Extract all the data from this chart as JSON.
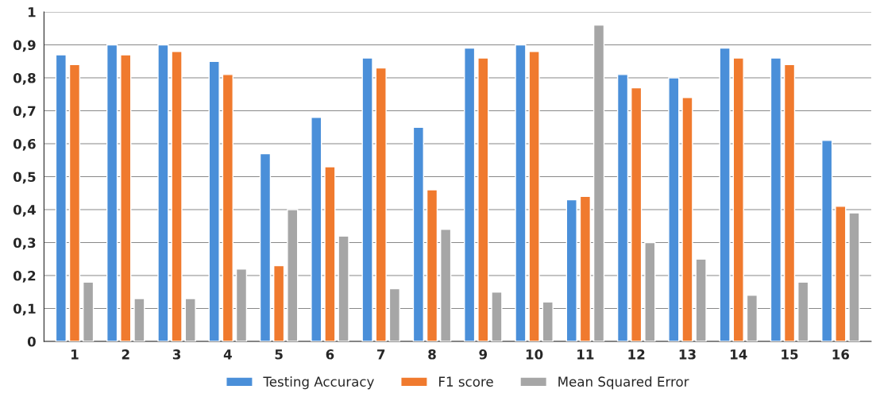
{
  "chart_data": {
    "type": "bar",
    "categories": [
      "1",
      "2",
      "3",
      "4",
      "5",
      "6",
      "7",
      "8",
      "9",
      "10",
      "11",
      "12",
      "13",
      "14",
      "15",
      "16"
    ],
    "series": [
      {
        "name": "Testing Accuracy",
        "color": "#4a8fd9",
        "values": [
          0.87,
          0.9,
          0.9,
          0.85,
          0.57,
          0.68,
          0.86,
          0.65,
          0.89,
          0.9,
          0.43,
          0.81,
          0.8,
          0.89,
          0.86,
          0.61
        ]
      },
      {
        "name": "F1 score",
        "color": "#f07a2e",
        "values": [
          0.84,
          0.87,
          0.88,
          0.81,
          0.23,
          0.53,
          0.83,
          0.46,
          0.86,
          0.88,
          0.44,
          0.77,
          0.74,
          0.86,
          0.84,
          0.41
        ]
      },
      {
        "name": "Mean Squared Error",
        "color": "#a6a6a6",
        "values": [
          0.18,
          0.13,
          0.13,
          0.22,
          0.4,
          0.32,
          0.16,
          0.34,
          0.15,
          0.12,
          0.96,
          0.3,
          0.25,
          0.14,
          0.18,
          0.39
        ]
      }
    ],
    "ylim": [
      0,
      1
    ],
    "yticks": [
      0,
      {
        "value": 0.1,
        "label": "0,1"
      },
      {
        "value": 0.2,
        "label": "0,2"
      },
      {
        "value": 0.3,
        "label": "0,3"
      },
      {
        "value": 0.4,
        "label": "0,4"
      },
      {
        "value": 0.5,
        "label": "0,5"
      },
      {
        "value": 0.6,
        "label": "0,6"
      },
      {
        "value": 0.7,
        "label": "0,7"
      },
      {
        "value": 0.8,
        "label": "0,8"
      },
      {
        "value": 0.9,
        "label": "0,9"
      },
      1
    ],
    "grid": "y",
    "legend": "bottom"
  }
}
